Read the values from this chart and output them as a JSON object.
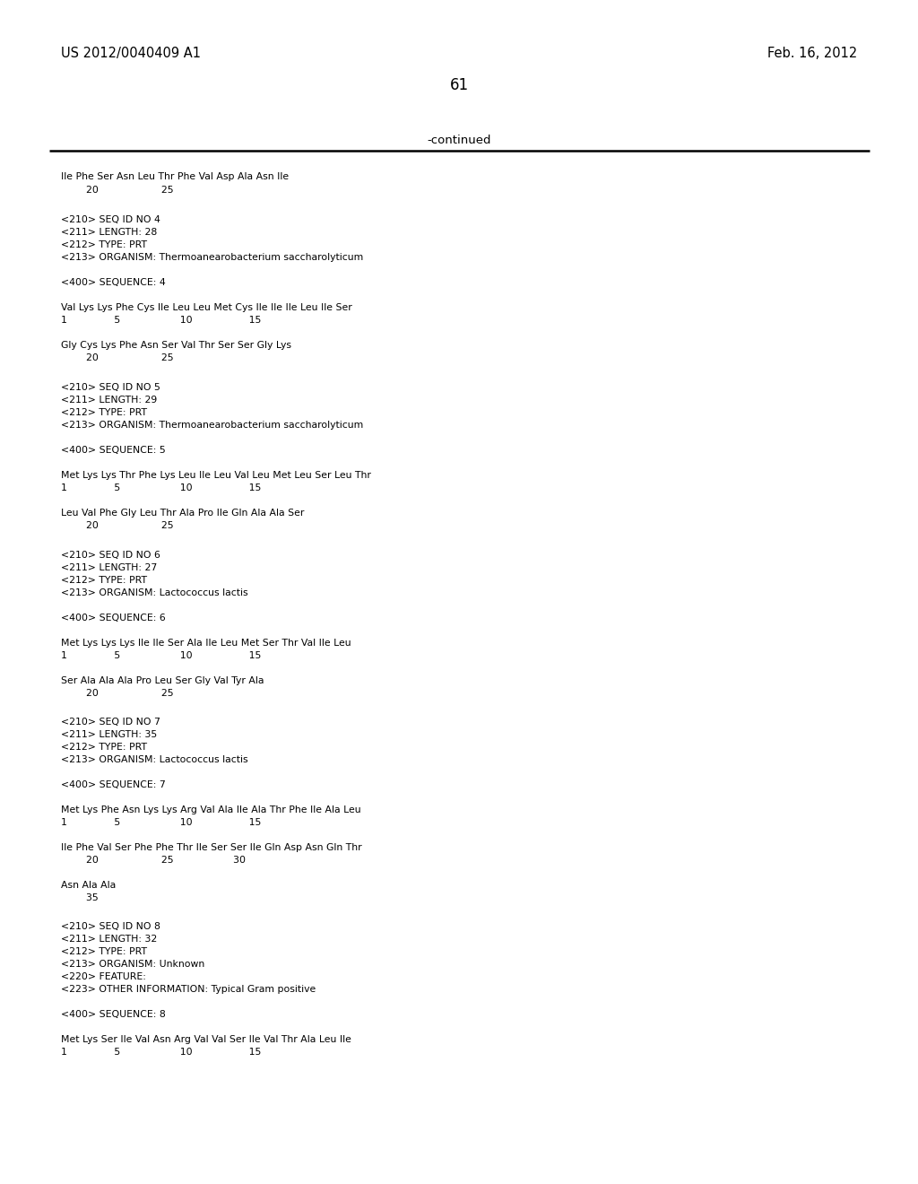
{
  "background_color": "#ffffff",
  "header_left": "US 2012/0040409 A1",
  "header_right": "Feb. 16, 2012",
  "page_number": "61",
  "continued_label": "-continued",
  "content": [
    [
      192,
      "Ile Phe Ser Asn Leu Thr Phe Val Asp Ala Asn Ile"
    ],
    [
      207,
      "        20                    25"
    ],
    [
      240,
      "<210> SEQ ID NO 4"
    ],
    [
      254,
      "<211> LENGTH: 28"
    ],
    [
      268,
      "<212> TYPE: PRT"
    ],
    [
      282,
      "<213> ORGANISM: Thermoanearobacterium saccharolyticum"
    ],
    [
      310,
      "<400> SEQUENCE: 4"
    ],
    [
      338,
      "Val Lys Lys Phe Cys Ile Leu Leu Met Cys Ile Ile Ile Leu Ile Ser"
    ],
    [
      352,
      "1               5                   10                  15"
    ],
    [
      380,
      "Gly Cys Lys Phe Asn Ser Val Thr Ser Ser Gly Lys"
    ],
    [
      394,
      "        20                    25"
    ],
    [
      427,
      "<210> SEQ ID NO 5"
    ],
    [
      441,
      "<211> LENGTH: 29"
    ],
    [
      455,
      "<212> TYPE: PRT"
    ],
    [
      469,
      "<213> ORGANISM: Thermoanearobacterium saccharolyticum"
    ],
    [
      497,
      "<400> SEQUENCE: 5"
    ],
    [
      525,
      "Met Lys Lys Thr Phe Lys Leu Ile Leu Val Leu Met Leu Ser Leu Thr"
    ],
    [
      539,
      "1               5                   10                  15"
    ],
    [
      567,
      "Leu Val Phe Gly Leu Thr Ala Pro Ile Gln Ala Ala Ser"
    ],
    [
      581,
      "        20                    25"
    ],
    [
      614,
      "<210> SEQ ID NO 6"
    ],
    [
      628,
      "<211> LENGTH: 27"
    ],
    [
      642,
      "<212> TYPE: PRT"
    ],
    [
      656,
      "<213> ORGANISM: Lactococcus lactis"
    ],
    [
      684,
      "<400> SEQUENCE: 6"
    ],
    [
      712,
      "Met Lys Lys Lys Ile Ile Ser Ala Ile Leu Met Ser Thr Val Ile Leu"
    ],
    [
      726,
      "1               5                   10                  15"
    ],
    [
      754,
      "Ser Ala Ala Ala Pro Leu Ser Gly Val Tyr Ala"
    ],
    [
      768,
      "        20                    25"
    ],
    [
      800,
      "<210> SEQ ID NO 7"
    ],
    [
      814,
      "<211> LENGTH: 35"
    ],
    [
      828,
      "<212> TYPE: PRT"
    ],
    [
      842,
      "<213> ORGANISM: Lactococcus lactis"
    ],
    [
      870,
      "<400> SEQUENCE: 7"
    ],
    [
      898,
      "Met Lys Phe Asn Lys Lys Arg Val Ala Ile Ala Thr Phe Ile Ala Leu"
    ],
    [
      912,
      "1               5                   10                  15"
    ],
    [
      940,
      "Ile Phe Val Ser Phe Phe Thr Ile Ser Ser Ile Gln Asp Asn Gln Thr"
    ],
    [
      954,
      "        20                    25                   30"
    ],
    [
      982,
      "Asn Ala Ala"
    ],
    [
      996,
      "        35"
    ],
    [
      1028,
      "<210> SEQ ID NO 8"
    ],
    [
      1042,
      "<211> LENGTH: 32"
    ],
    [
      1056,
      "<212> TYPE: PRT"
    ],
    [
      1070,
      "<213> ORGANISM: Unknown"
    ],
    [
      1084,
      "<220> FEATURE:"
    ],
    [
      1098,
      "<223> OTHER INFORMATION: Typical Gram positive"
    ],
    [
      1126,
      "<400> SEQUENCE: 8"
    ],
    [
      1154,
      "Met Lys Ser Ile Val Asn Arg Val Val Ser Ile Val Thr Ala Leu Ile"
    ],
    [
      1168,
      "1               5                   10                  15"
    ]
  ]
}
